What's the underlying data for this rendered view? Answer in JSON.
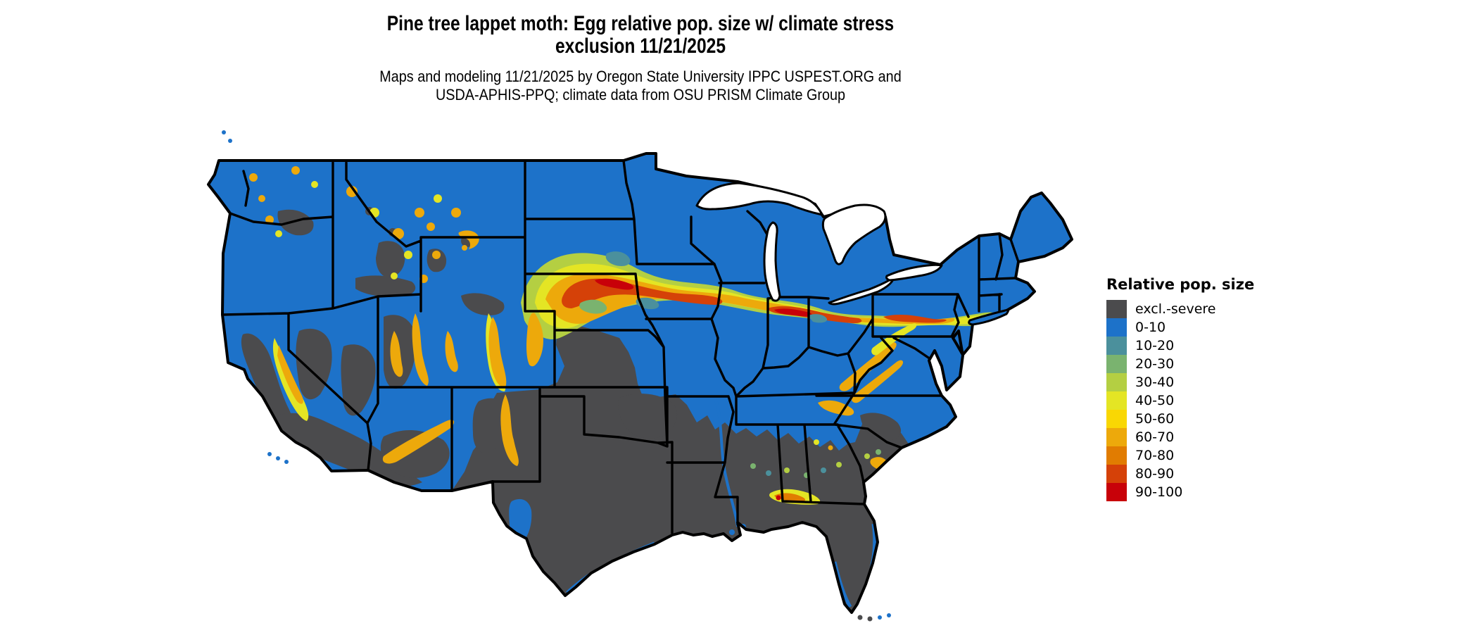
{
  "title": {
    "line1": "Pine tree lappet moth: Egg relative pop. size w/ climate stress",
    "line2": "exclusion 11/21/2025"
  },
  "subtitle": {
    "line1": "Maps and modeling 11/21/2025 by Oregon State University IPPC USPEST.ORG and",
    "line2": "USDA-APHIS-PPQ; climate data from OSU PRISM Climate Group"
  },
  "legend": {
    "title": "Relative pop. size",
    "items": [
      {
        "label": "excl.-severe",
        "color": "#4b4b4d"
      },
      {
        "label": "0-10",
        "color": "#1d72c9"
      },
      {
        "label": "10-20",
        "color": "#4b909c"
      },
      {
        "label": "20-30",
        "color": "#7ab36f"
      },
      {
        "label": "30-40",
        "color": "#b4cf42"
      },
      {
        "label": "40-50",
        "color": "#e4e524"
      },
      {
        "label": "50-60",
        "color": "#f9d703"
      },
      {
        "label": "60-70",
        "color": "#eda90b"
      },
      {
        "label": "70-80",
        "color": "#e17c01"
      },
      {
        "label": "80-90",
        "color": "#d54108"
      },
      {
        "label": "90-100",
        "color": "#c80109"
      }
    ]
  },
  "map": {
    "type": "choropleth-raster",
    "region": "Conterminous United States with state boundaries",
    "border_color": "#000000",
    "water_color": "#ffffff",
    "background_color": "#ffffff",
    "areas": [
      {
        "value_class": "0-10",
        "where": "Most of West Coast states, northern Rockies, Upper Midwest, Northeast, Kentucky/Tennessee and mid-Atlantic"
      },
      {
        "value_class": "excl.-severe",
        "where": "Texas, Oklahoma, Louisiana, Florida, Gulf Coast states, southern Great Plains, California Central Valley, Nevada/Utah/Arizona basins"
      },
      {
        "value_class": "60-100",
        "where": "High band from central Nebraska across Iowa, Illinois, Indiana, Ohio into Pennsylvania; mountain ranges of Rockies, Sierra, Cascades, Appalachians; spots in Alabama/Georgia and coastal South Carolina"
      }
    ]
  }
}
